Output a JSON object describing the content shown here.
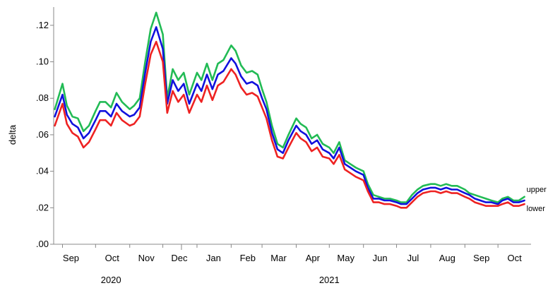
{
  "chart_data": {
    "type": "line",
    "ylabel": "delta",
    "ylim": [
      0,
      0.13
    ],
    "y_ticks": [
      {
        "value": 0.0,
        "label": ".00"
      },
      {
        "value": 0.02,
        "label": ".02"
      },
      {
        "value": 0.04,
        "label": ".04"
      },
      {
        "value": 0.06,
        "label": ".06"
      },
      {
        "value": 0.08,
        "label": ".08"
      },
      {
        "value": 0.1,
        "label": ".10"
      },
      {
        "value": 0.12,
        "label": ".12"
      }
    ],
    "xlim": [
      "2020-08-24",
      "2021-10-31"
    ],
    "x_ticks": [
      {
        "label": "Sep",
        "date": "2020-09-01"
      },
      {
        "label": "Oct",
        "date": "2020-10-01"
      },
      {
        "label": "Nov",
        "date": "2020-11-01"
      },
      {
        "label": "Dec",
        "date": "2020-12-01"
      },
      {
        "label": "Jan",
        "date": "2021-01-01"
      },
      {
        "label": "Feb",
        "date": "2021-02-01"
      },
      {
        "label": "Mar",
        "date": "2021-03-01"
      },
      {
        "label": "Apr",
        "date": "2021-04-01"
      },
      {
        "label": "May",
        "date": "2021-05-01"
      },
      {
        "label": "Jun",
        "date": "2021-06-01"
      },
      {
        "label": "Jul",
        "date": "2021-07-01"
      },
      {
        "label": "Aug",
        "date": "2021-08-01"
      },
      {
        "label": "Sep",
        "date": "2021-09-01"
      },
      {
        "label": "Oct",
        "date": "2021-10-01"
      }
    ],
    "year_labels": [
      {
        "label": "2020",
        "date": "2020-10-15"
      },
      {
        "label": "2021",
        "date": "2021-05-01"
      }
    ],
    "x": [
      "2020-08-25",
      "2020-09-01",
      "2020-09-05",
      "2020-09-10",
      "2020-09-15",
      "2020-09-20",
      "2020-09-25",
      "2020-10-01",
      "2020-10-05",
      "2020-10-10",
      "2020-10-15",
      "2020-10-20",
      "2020-10-25",
      "2020-11-01",
      "2020-11-05",
      "2020-11-10",
      "2020-11-15",
      "2020-11-20",
      "2020-11-25",
      "2020-12-01",
      "2020-12-05",
      "2020-12-10",
      "2020-12-15",
      "2020-12-20",
      "2020-12-25",
      "2021-01-01",
      "2021-01-05",
      "2021-01-10",
      "2021-01-15",
      "2021-01-20",
      "2021-01-25",
      "2021-02-01",
      "2021-02-05",
      "2021-02-10",
      "2021-02-15",
      "2021-02-20",
      "2021-02-25",
      "2021-03-01",
      "2021-03-05",
      "2021-03-10",
      "2021-03-15",
      "2021-03-20",
      "2021-03-25",
      "2021-04-01",
      "2021-04-05",
      "2021-04-10",
      "2021-04-15",
      "2021-04-20",
      "2021-04-25",
      "2021-05-01",
      "2021-05-05",
      "2021-05-10",
      "2021-05-15",
      "2021-05-20",
      "2021-05-25",
      "2021-06-01",
      "2021-06-05",
      "2021-06-10",
      "2021-06-15",
      "2021-06-20",
      "2021-06-25",
      "2021-07-01",
      "2021-07-05",
      "2021-07-10",
      "2021-07-15",
      "2021-07-20",
      "2021-07-25",
      "2021-08-01",
      "2021-08-05",
      "2021-08-10",
      "2021-08-15",
      "2021-08-20",
      "2021-08-25",
      "2021-09-01",
      "2021-09-05",
      "2021-09-10",
      "2021-09-15",
      "2021-09-20",
      "2021-09-25",
      "2021-10-01",
      "2021-10-05",
      "2021-10-10",
      "2021-10-15",
      "2021-10-20",
      "2021-10-25"
    ],
    "series": [
      {
        "name": "upper",
        "color": "#22bb55",
        "values": [
          0.074,
          0.088,
          0.076,
          0.07,
          0.069,
          0.062,
          0.065,
          0.073,
          0.078,
          0.078,
          0.075,
          0.083,
          0.078,
          0.074,
          0.076,
          0.08,
          0.1,
          0.118,
          0.127,
          0.115,
          0.08,
          0.096,
          0.09,
          0.094,
          0.082,
          0.094,
          0.09,
          0.099,
          0.09,
          0.099,
          0.101,
          0.109,
          0.106,
          0.098,
          0.094,
          0.095,
          0.093,
          0.085,
          0.078,
          0.065,
          0.055,
          0.053,
          0.06,
          0.069,
          0.066,
          0.064,
          0.058,
          0.06,
          0.055,
          0.053,
          0.05,
          0.056,
          0.046,
          0.044,
          0.042,
          0.04,
          0.033,
          0.027,
          0.026,
          0.025,
          0.025,
          0.024,
          0.023,
          0.023,
          0.027,
          0.03,
          0.032,
          0.033,
          0.033,
          0.032,
          0.033,
          0.032,
          0.032,
          0.03,
          0.028,
          0.027,
          0.026,
          0.025,
          0.024,
          0.023,
          0.025,
          0.026,
          0.024,
          0.024,
          0.026
        ]
      },
      {
        "name": "",
        "color": "#1111dd",
        "values": [
          0.07,
          0.082,
          0.071,
          0.066,
          0.064,
          0.058,
          0.061,
          0.068,
          0.073,
          0.073,
          0.07,
          0.077,
          0.073,
          0.07,
          0.071,
          0.075,
          0.094,
          0.111,
          0.119,
          0.107,
          0.077,
          0.09,
          0.084,
          0.088,
          0.077,
          0.088,
          0.084,
          0.093,
          0.085,
          0.093,
          0.095,
          0.102,
          0.099,
          0.092,
          0.088,
          0.089,
          0.087,
          0.08,
          0.074,
          0.061,
          0.052,
          0.05,
          0.057,
          0.065,
          0.062,
          0.06,
          0.055,
          0.057,
          0.052,
          0.05,
          0.047,
          0.053,
          0.044,
          0.042,
          0.04,
          0.038,
          0.031,
          0.025,
          0.025,
          0.024,
          0.024,
          0.023,
          0.022,
          0.022,
          0.025,
          0.028,
          0.03,
          0.031,
          0.031,
          0.03,
          0.031,
          0.03,
          0.03,
          0.028,
          0.027,
          0.025,
          0.024,
          0.023,
          0.023,
          0.022,
          0.024,
          0.025,
          0.023,
          0.023,
          0.024
        ]
      },
      {
        "name": "lower",
        "color": "#ee2222",
        "values": [
          0.065,
          0.077,
          0.066,
          0.061,
          0.059,
          0.053,
          0.056,
          0.063,
          0.068,
          0.068,
          0.065,
          0.072,
          0.068,
          0.065,
          0.066,
          0.07,
          0.088,
          0.104,
          0.111,
          0.1,
          0.072,
          0.084,
          0.078,
          0.082,
          0.072,
          0.082,
          0.078,
          0.087,
          0.079,
          0.087,
          0.089,
          0.096,
          0.093,
          0.086,
          0.082,
          0.083,
          0.081,
          0.075,
          0.069,
          0.057,
          0.048,
          0.047,
          0.053,
          0.061,
          0.058,
          0.056,
          0.051,
          0.053,
          0.048,
          0.047,
          0.044,
          0.049,
          0.041,
          0.039,
          0.037,
          0.035,
          0.029,
          0.023,
          0.023,
          0.022,
          0.022,
          0.021,
          0.02,
          0.02,
          0.023,
          0.026,
          0.028,
          0.029,
          0.029,
          0.028,
          0.029,
          0.028,
          0.028,
          0.026,
          0.025,
          0.023,
          0.022,
          0.021,
          0.021,
          0.021,
          0.022,
          0.023,
          0.021,
          0.021,
          0.022
        ]
      }
    ]
  }
}
